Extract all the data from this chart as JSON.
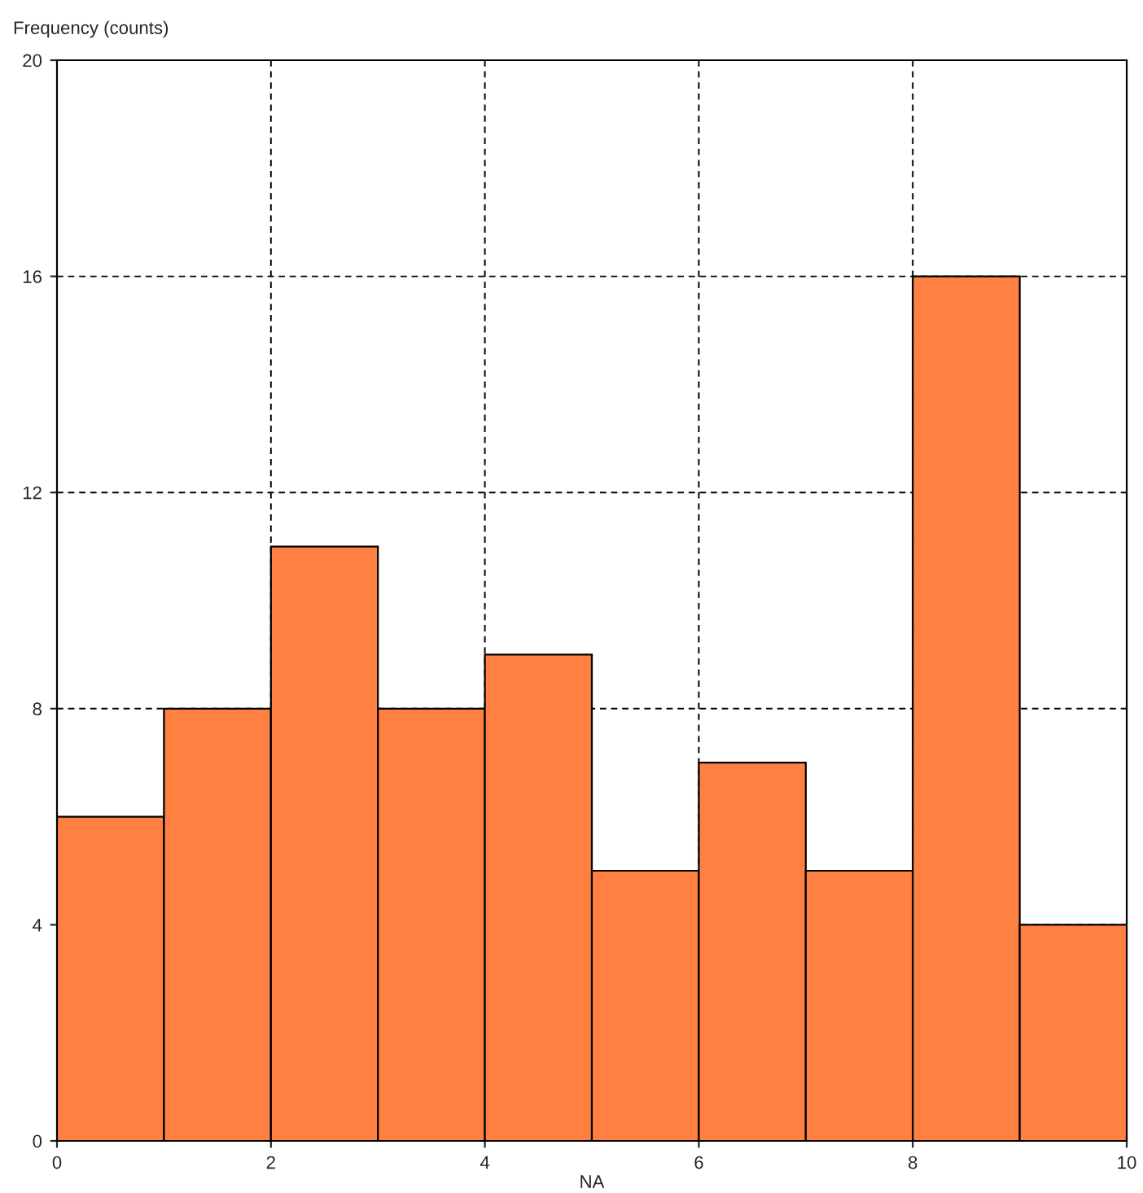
{
  "chart_data": {
    "type": "histogram",
    "ylabel": "Frequency (counts)",
    "xlabel": "NA",
    "bins": [
      0,
      1,
      2,
      3,
      4,
      5,
      6,
      7,
      8,
      9,
      10
    ],
    "values": [
      6,
      8,
      11,
      8,
      9,
      5,
      7,
      5,
      16,
      4
    ],
    "color": "#ff8040",
    "xlim": [
      0,
      10
    ],
    "xticks": [
      0,
      2,
      4,
      6,
      8,
      10
    ],
    "ylim": [
      0,
      20
    ],
    "yticks": [
      0,
      4,
      8,
      12,
      16,
      20
    ],
    "grid": true
  }
}
